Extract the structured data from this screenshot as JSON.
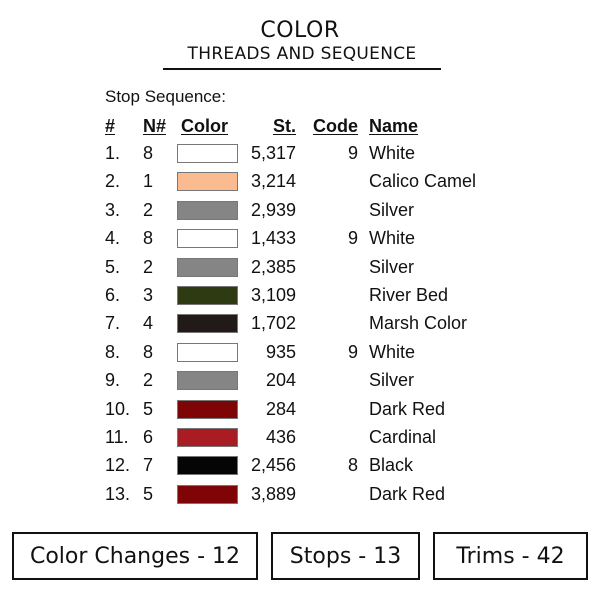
{
  "title": "COLOR",
  "subtitle": "THREADS AND SEQUENCE",
  "stop_label": "Stop Sequence:",
  "headers": {
    "num": "#",
    "n": "N#",
    "color": "Color",
    "st": "St.",
    "code": "Code",
    "name": "Name"
  },
  "rows": [
    {
      "num": "1.",
      "n": "8",
      "color": "#ffffff",
      "st": "5,317",
      "code": "9",
      "name": "White"
    },
    {
      "num": "2.",
      "n": "1",
      "color": "#f9bb8f",
      "st": "3,214",
      "code": "",
      "name": "Calico Camel"
    },
    {
      "num": "3.",
      "n": "2",
      "color": "#858585",
      "st": "2,939",
      "code": "",
      "name": "Silver"
    },
    {
      "num": "4.",
      "n": "8",
      "color": "#ffffff",
      "st": "1,433",
      "code": "9",
      "name": "White"
    },
    {
      "num": "5.",
      "n": "2",
      "color": "#858585",
      "st": "2,385",
      "code": "",
      "name": "Silver"
    },
    {
      "num": "6.",
      "n": "3",
      "color": "#2e3a12",
      "st": "3,109",
      "code": "",
      "name": "River Bed"
    },
    {
      "num": "7.",
      "n": "4",
      "color": "#221a18",
      "st": "1,702",
      "code": "",
      "name": "Marsh Color"
    },
    {
      "num": "8.",
      "n": "8",
      "color": "#ffffff",
      "st": "935",
      "code": "9",
      "name": "White"
    },
    {
      "num": "9.",
      "n": "2",
      "color": "#858585",
      "st": "204",
      "code": "",
      "name": "Silver"
    },
    {
      "num": "10.",
      "n": "5",
      "color": "#7e0406",
      "st": "284",
      "code": "",
      "name": "Dark Red"
    },
    {
      "num": "11.",
      "n": "6",
      "color": "#a81c22",
      "st": "436",
      "code": "",
      "name": "Cardinal"
    },
    {
      "num": "12.",
      "n": "7",
      "color": "#050505",
      "st": "2,456",
      "code": "8",
      "name": "Black"
    },
    {
      "num": "13.",
      "n": "5",
      "color": "#7e0406",
      "st": "3,889",
      "code": "",
      "name": "Dark Red"
    }
  ],
  "summary": {
    "color_changes": "Color Changes - 12",
    "stops": "Stops - 13",
    "trims": "Trims - 42"
  }
}
